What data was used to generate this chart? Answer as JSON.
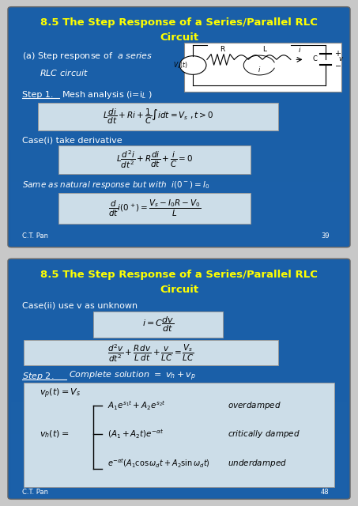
{
  "bg_color": "#c8c8c8",
  "slide_bg": "#1a5fa8",
  "title_color": "#ffff00",
  "title_text_1": "8.5 The Step Response of a Series/Parallel RLC",
  "title_text_2": "Circuit",
  "footer_left": "C.T. Pan",
  "footer_right_1": "39",
  "footer_right_2": "48"
}
